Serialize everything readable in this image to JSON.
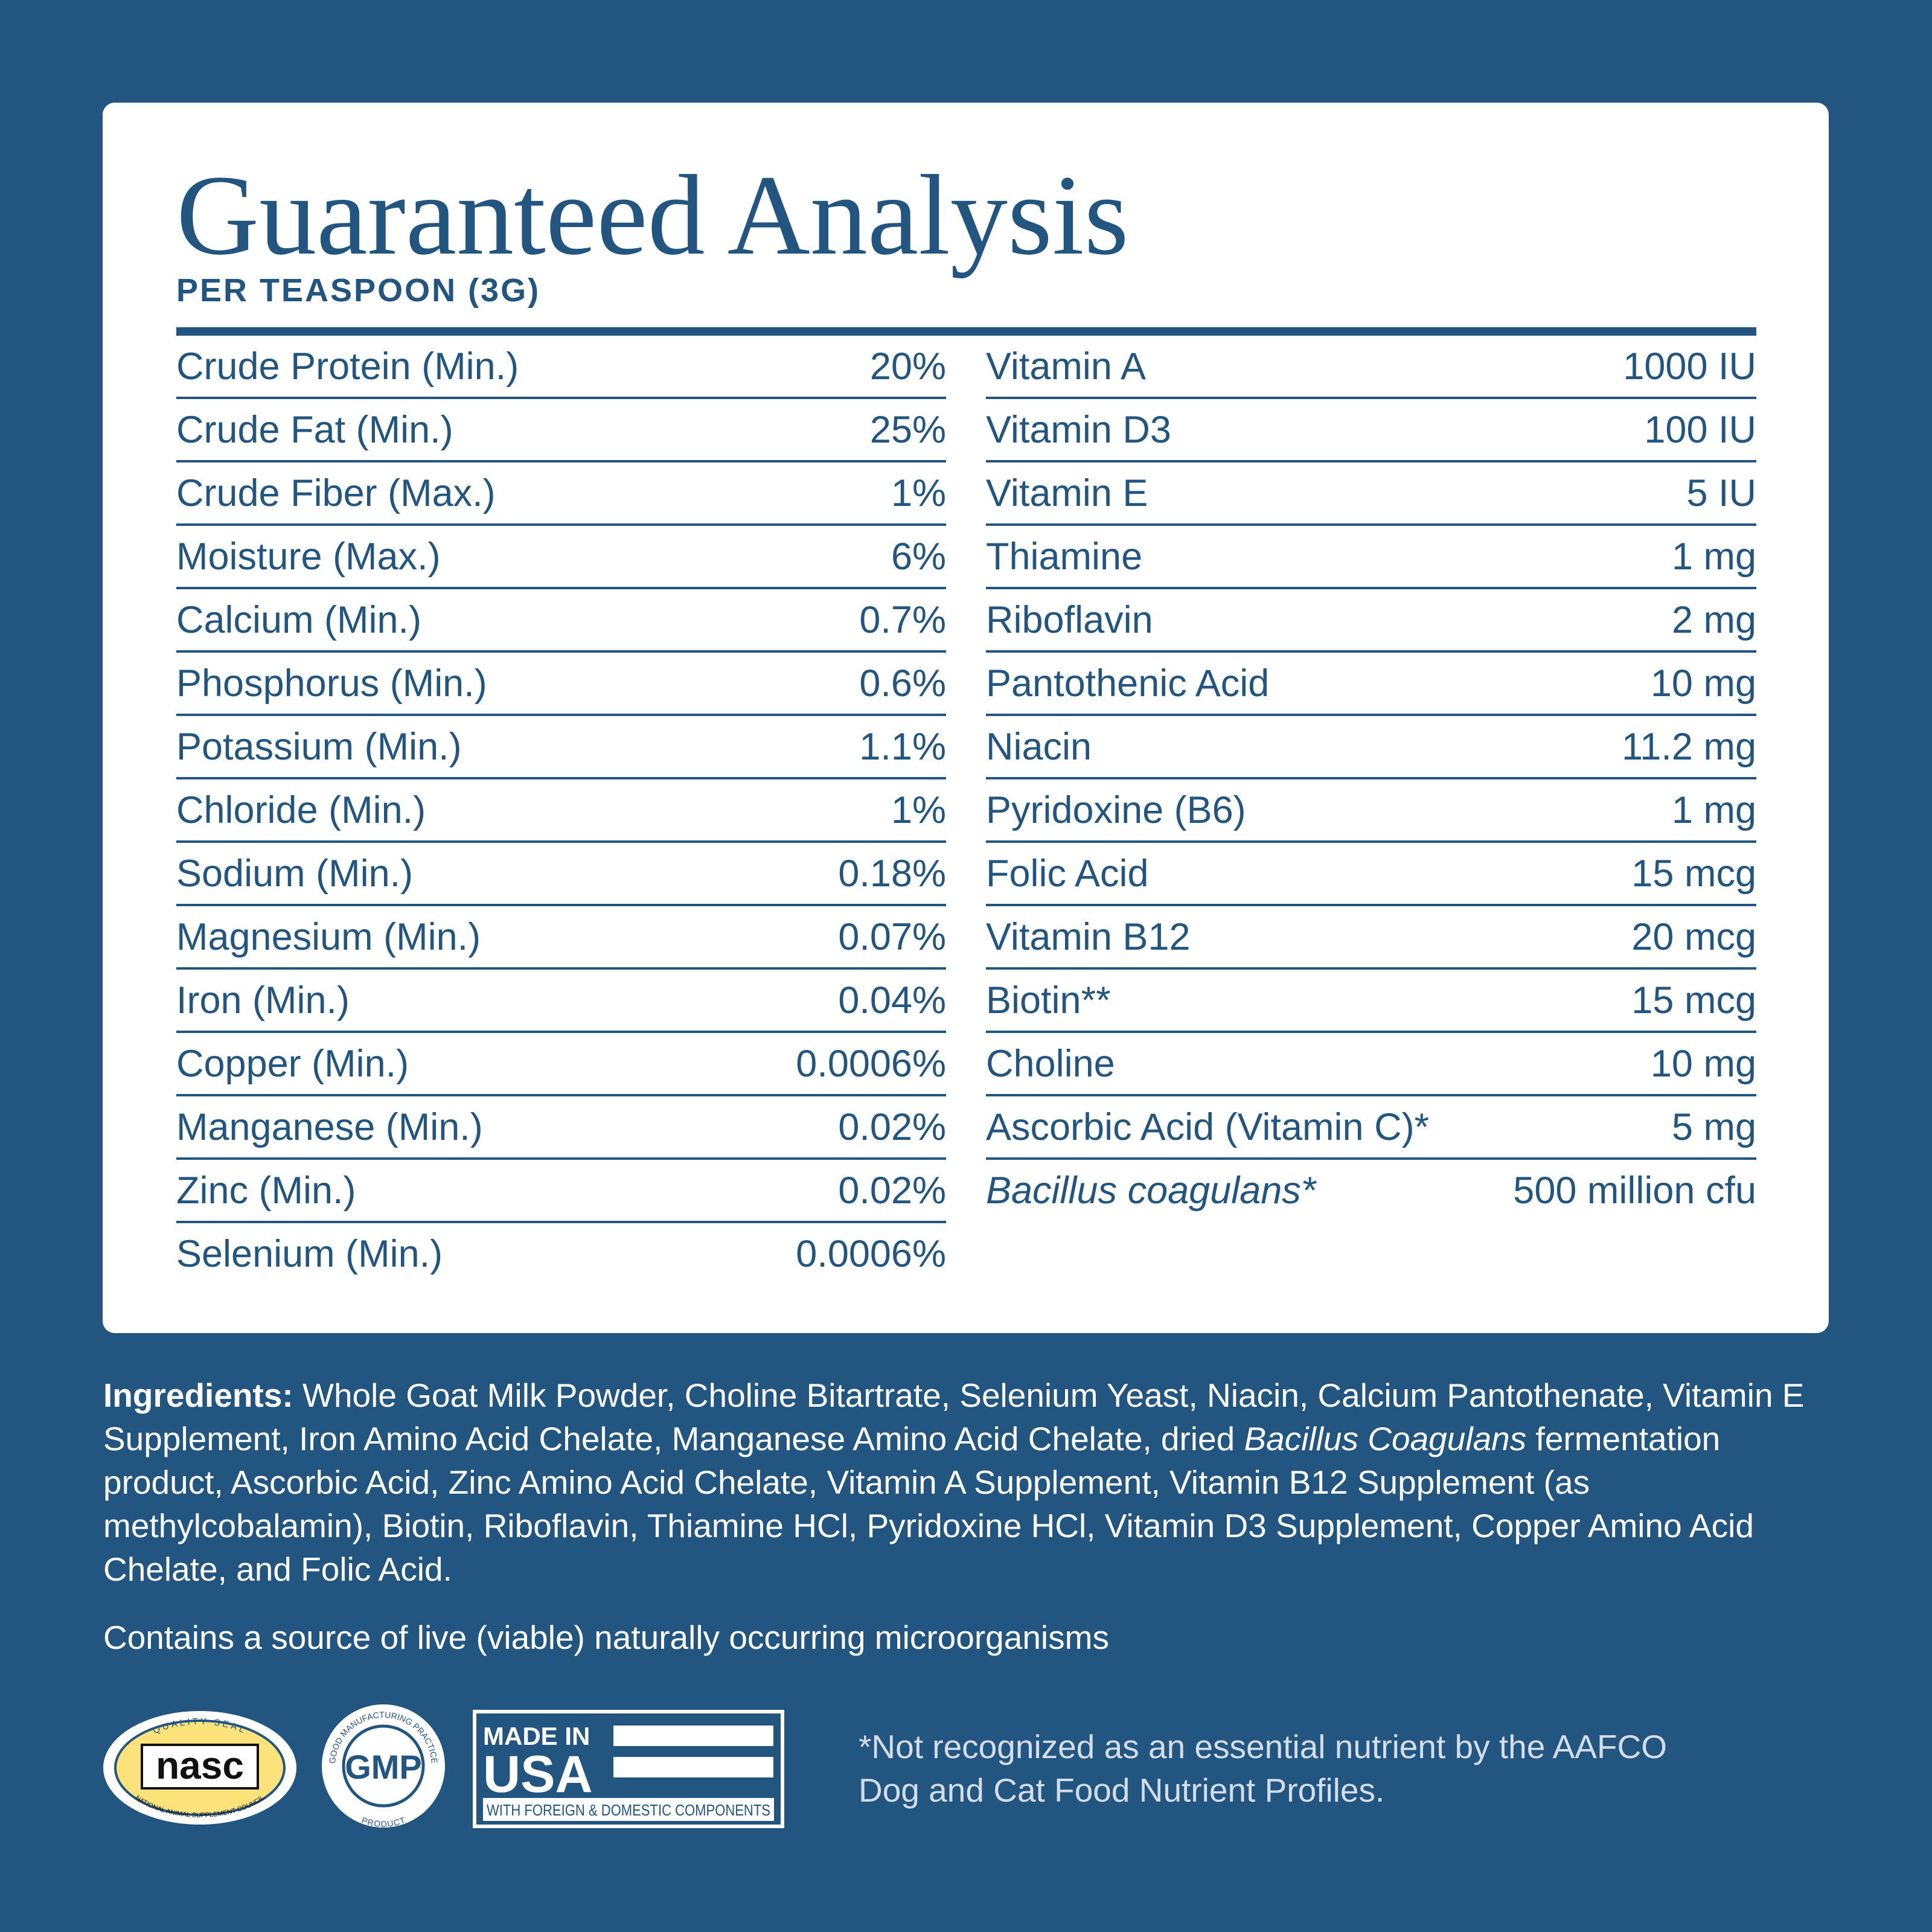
{
  "header": {
    "title": "Guaranteed Analysis",
    "subtitle": "PER TEASPOON (3G)"
  },
  "table": {
    "left": [
      [
        "Crude Protein (Min.)",
        "20%"
      ],
      [
        "Crude Fat (Min.)",
        "25%"
      ],
      [
        "Crude Fiber (Max.)",
        "1%"
      ],
      [
        "Moisture (Max.)",
        "6%"
      ],
      [
        "Calcium (Min.)",
        "0.7%"
      ],
      [
        "Phosphorus (Min.)",
        "0.6%"
      ],
      [
        "Potassium (Min.)",
        "1.1%"
      ],
      [
        "Chloride (Min.)",
        "1%"
      ],
      [
        "Sodium (Min.)",
        "0.18%"
      ],
      [
        "Magnesium (Min.)",
        "0.07%"
      ],
      [
        "Iron (Min.)",
        "0.04%"
      ],
      [
        "Copper (Min.)",
        "0.0006%"
      ],
      [
        "Manganese (Min.)",
        "0.02%"
      ],
      [
        "Zinc (Min.)",
        "0.02%"
      ],
      [
        "Selenium (Min.)",
        "0.0006%"
      ]
    ],
    "right": [
      [
        "Vitamin A",
        "1000 IU"
      ],
      [
        "Vitamin D3",
        "100 IU"
      ],
      [
        "Vitamin E",
        "5 IU"
      ],
      [
        "Thiamine",
        "1 mg"
      ],
      [
        "Riboflavin",
        "2 mg"
      ],
      [
        "Pantothenic Acid",
        "10 mg"
      ],
      [
        "Niacin",
        "11.2 mg"
      ],
      [
        "Pyridoxine (B6)",
        "1 mg"
      ],
      [
        "Folic Acid",
        "15 mcg"
      ],
      [
        "Vitamin B12",
        "20 mcg"
      ],
      [
        "Biotin**",
        "15 mcg"
      ],
      [
        "Choline",
        "10 mg"
      ],
      [
        "Ascorbic Acid (Vitamin C)*",
        "5 mg"
      ],
      [
        "Bacillus coagulans*",
        "500 million cfu"
      ]
    ]
  },
  "ingredients": {
    "label": "Ingredients:",
    "parts": [
      " Whole Goat Milk Powder, Choline Bitartrate, Selenium Yeast, Niacin, Calcium Pantothenate, Vitamin E Supplement, Iron Amino Acid Chelate, Manganese Amino Acid Chelate, dried ",
      "Bacillus Coagulans",
      " fermentation product, Ascorbic Acid, Zinc Amino Acid Chelate, Vitamin A Supplement, Vitamin B12 Supplement (as methylcobalamin), Biotin, Riboflavin, Thiamine HCl, Pyridoxine HCl, Vitamin D3 Supplement, Copper Amino Acid Chelate, and Folic Acid."
    ]
  },
  "contains": "Contains a source of live (viable) naturally occurring microorganisms",
  "badges": {
    "nasc": {
      "top": "QUALITY SEAL",
      "name": "nasc",
      "bottom": "NATIONAL ANIMAL SUPPLEMENT COUNCIL"
    },
    "gmp": {
      "ring": "GOOD MANUFACTURING PRACTICE",
      "name": "GMP",
      "bottom": "PRODUCT"
    },
    "usa": {
      "line1": "MADE IN",
      "line2": "USA",
      "line3": "WITH FOREIGN & DOMESTIC COMPONENTS"
    }
  },
  "footnote": "*Not recognized as an essential nutrient by the AAFCO Dog and Cat Food Nutrient Profiles."
}
